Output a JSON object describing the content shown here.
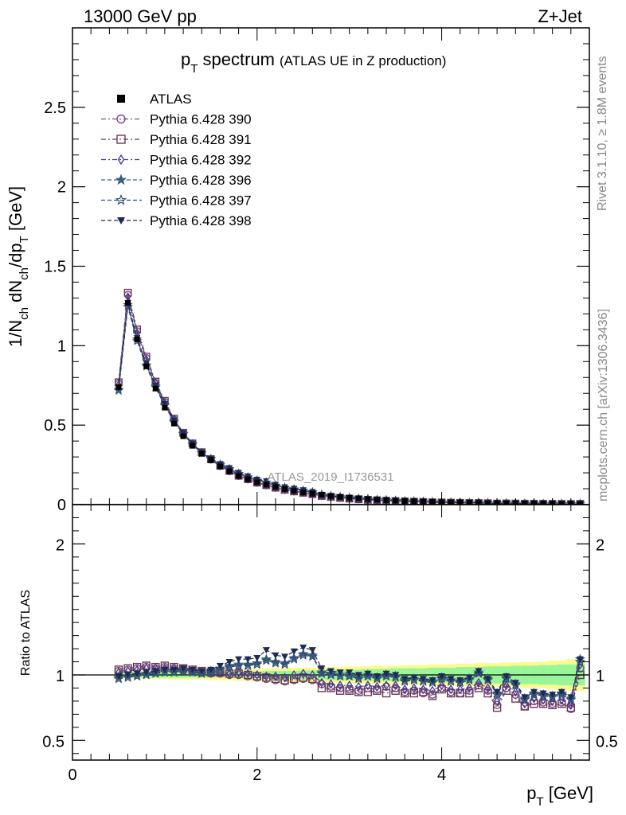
{
  "header": {
    "left_label": "13000 GeV pp",
    "right_label": "Z+Jet"
  },
  "side_labels": {
    "rivet": "Rivet 3.1.10, ≥ 1.8M events",
    "mcplots": "mcplots.cern.ch [arXiv:1306.3436]"
  },
  "colors": {
    "green_band": "#99f599",
    "yellow_band": "#fbfb8c",
    "data_marker": "#000000"
  },
  "chart_data": [
    {
      "type": "line",
      "title_main": "p",
      "title_sub": "T",
      "title_rest": " spectrum",
      "subtitle": "(ATLAS UE in Z production)",
      "ylabel_parts": [
        "1/N",
        "ch",
        " dN",
        "ch",
        "/dp",
        "T",
        " [GeV]"
      ],
      "watermark": "ATLAS_2019_I1736531",
      "ylim": [
        0,
        3.0
      ],
      "yticks": [
        "0",
        "0.5",
        "1",
        "1.5",
        "2",
        "2.5"
      ],
      "ytick_values": [
        0,
        0.5,
        1,
        1.5,
        2,
        2.5
      ],
      "x": [
        0.5,
        0.6,
        0.7,
        0.8,
        0.9,
        1.0,
        1.1,
        1.2,
        1.3,
        1.4,
        1.5,
        1.6,
        1.7,
        1.8,
        1.9,
        2.0,
        2.1,
        2.2,
        2.3,
        2.4,
        2.5,
        2.6,
        2.7,
        2.8,
        2.9,
        3.0,
        3.1,
        3.2,
        3.3,
        3.4,
        3.5,
        3.6,
        3.7,
        3.8,
        3.9,
        4.0,
        4.1,
        4.2,
        4.3,
        4.4,
        4.5,
        4.6,
        4.7,
        4.8,
        4.9,
        5.0,
        5.1,
        5.2,
        5.3,
        5.4,
        5.5
      ],
      "atlas_values": [
        0.74,
        1.27,
        1.04,
        0.87,
        0.73,
        0.61,
        0.51,
        0.43,
        0.37,
        0.32,
        0.28,
        0.24,
        0.21,
        0.18,
        0.16,
        0.14,
        0.125,
        0.11,
        0.097,
        0.086,
        0.076,
        0.068,
        0.061,
        0.054,
        0.048,
        0.043,
        0.039,
        0.035,
        0.031,
        0.028,
        0.025,
        0.023,
        0.021,
        0.019,
        0.017,
        0.015,
        0.014,
        0.013,
        0.012,
        0.011,
        0.01,
        0.009,
        0.0085,
        0.008,
        0.0075,
        0.007,
        0.0065,
        0.006,
        0.0055,
        0.005,
        0.0045
      ],
      "legend": [
        {
          "label": "ATLAS",
          "marker": "square-filled",
          "color": "#000000"
        },
        {
          "label": "Pythia 6.428 390",
          "marker": "circle-open",
          "color": "#7a4a8c"
        },
        {
          "label": "Pythia 6.428 391",
          "marker": "square-open",
          "color": "#6b3a55"
        },
        {
          "label": "Pythia 6.428 392",
          "marker": "diamond-open",
          "color": "#4a3a8c"
        },
        {
          "label": "Pythia 6.428 396",
          "marker": "star-filled",
          "color": "#3a6080"
        },
        {
          "label": "Pythia 6.428 397",
          "marker": "star-open",
          "color": "#2e4a70"
        },
        {
          "label": "Pythia 6.428 398",
          "marker": "triangle-down-filled",
          "color": "#1e2a55"
        }
      ]
    },
    {
      "type": "line",
      "ylabel": "Ratio to ATLAS",
      "xlabel_main": "p",
      "xlabel_sub": "T",
      "xlabel_rest": " [GeV]",
      "xlim": [
        0,
        5.6
      ],
      "xticks": [
        "0",
        "2",
        "4"
      ],
      "xtick_values": [
        0,
        2,
        4
      ],
      "ylim": [
        0.35,
        2.3
      ],
      "yticks": [
        "0.5",
        "1",
        "2"
      ],
      "ytick_values": [
        0.5,
        1,
        2
      ],
      "band_green_halfwidth": [
        0.02,
        0.02,
        0.02,
        0.02,
        0.02,
        0.02,
        0.02,
        0.02,
        0.02,
        0.02,
        0.02,
        0.02,
        0.02,
        0.025,
        0.025,
        0.025,
        0.03,
        0.03,
        0.03,
        0.03,
        0.035,
        0.035,
        0.035,
        0.04,
        0.04,
        0.04,
        0.04,
        0.045,
        0.045,
        0.045,
        0.05,
        0.05,
        0.05,
        0.05,
        0.055,
        0.055,
        0.055,
        0.06,
        0.06,
        0.06,
        0.065,
        0.065,
        0.065,
        0.07,
        0.07,
        0.07,
        0.075,
        0.075,
        0.08,
        0.08,
        0.08
      ],
      "band_yellow_halfwidth": [
        0.03,
        0.03,
        0.03,
        0.03,
        0.03,
        0.03,
        0.035,
        0.035,
        0.035,
        0.035,
        0.04,
        0.04,
        0.04,
        0.045,
        0.045,
        0.045,
        0.05,
        0.05,
        0.05,
        0.055,
        0.055,
        0.055,
        0.06,
        0.06,
        0.06,
        0.065,
        0.065,
        0.065,
        0.07,
        0.07,
        0.07,
        0.075,
        0.075,
        0.075,
        0.08,
        0.08,
        0.08,
        0.085,
        0.085,
        0.09,
        0.09,
        0.09,
        0.095,
        0.095,
        0.1,
        0.1,
        0.1,
        0.11,
        0.11,
        0.12,
        0.12
      ],
      "series": [
        {
          "name": "Pythia 6.428 390",
          "values": [
            1.03,
            1.04,
            1.05,
            1.06,
            1.05,
            1.06,
            1.05,
            1.04,
            1.03,
            1.02,
            1.01,
            1.01,
            1.0,
            1.0,
            0.99,
            0.98,
            0.97,
            0.96,
            0.95,
            0.96,
            0.97,
            0.96,
            0.93,
            0.91,
            0.9,
            0.89,
            0.88,
            0.9,
            0.89,
            0.91,
            0.9,
            0.87,
            0.88,
            0.86,
            0.85,
            0.9,
            0.87,
            0.86,
            0.88,
            0.92,
            0.88,
            0.77,
            0.9,
            0.85,
            0.76,
            0.8,
            0.79,
            0.78,
            0.79,
            0.74,
            1.05
          ]
        },
        {
          "name": "Pythia 6.428 391",
          "values": [
            1.04,
            1.05,
            1.06,
            1.07,
            1.06,
            1.07,
            1.06,
            1.05,
            1.04,
            1.03,
            1.02,
            1.02,
            1.01,
            1.01,
            1.0,
            0.99,
            0.98,
            0.97,
            0.96,
            0.97,
            0.98,
            0.97,
            0.9,
            0.9,
            0.88,
            0.88,
            0.87,
            0.87,
            0.88,
            0.86,
            0.88,
            0.86,
            0.86,
            0.87,
            0.84,
            0.89,
            0.86,
            0.86,
            0.86,
            0.9,
            0.86,
            0.75,
            0.88,
            0.82,
            0.76,
            0.78,
            0.78,
            0.77,
            0.78,
            0.75,
            1.0
          ]
        },
        {
          "name": "Pythia 6.428 392",
          "values": [
            1.02,
            1.03,
            1.04,
            1.05,
            1.05,
            1.05,
            1.05,
            1.04,
            1.03,
            1.02,
            1.02,
            1.02,
            1.01,
            1.02,
            1.01,
            1.0,
            0.99,
            0.99,
            0.98,
            1.0,
            1.01,
            1.0,
            0.94,
            0.93,
            0.92,
            0.92,
            0.91,
            0.92,
            0.91,
            0.92,
            0.92,
            0.89,
            0.9,
            0.89,
            0.88,
            0.92,
            0.89,
            0.89,
            0.9,
            0.94,
            0.9,
            0.8,
            0.92,
            0.87,
            0.78,
            0.82,
            0.81,
            0.8,
            0.81,
            0.77,
            1.08
          ]
        },
        {
          "name": "Pythia 6.428 396",
          "values": [
            0.98,
            0.99,
            1.0,
            1.01,
            1.02,
            1.03,
            1.03,
            1.04,
            1.03,
            1.02,
            1.03,
            1.05,
            1.07,
            1.08,
            1.08,
            1.09,
            1.12,
            1.1,
            1.09,
            1.13,
            1.16,
            1.15,
            1.02,
            1.01,
            1.0,
            1.0,
            0.98,
            1.0,
            0.98,
            1.0,
            0.99,
            0.96,
            0.97,
            0.96,
            0.95,
            0.98,
            0.96,
            0.95,
            0.97,
            1.02,
            0.97,
            0.86,
            0.98,
            0.93,
            0.82,
            0.86,
            0.85,
            0.84,
            0.86,
            0.82,
            1.12
          ]
        },
        {
          "name": "Pythia 6.428 397",
          "values": [
            0.97,
            0.98,
            0.99,
            1.0,
            1.01,
            1.02,
            1.02,
            1.03,
            1.02,
            1.01,
            1.02,
            1.04,
            1.06,
            1.07,
            1.07,
            1.08,
            1.11,
            1.09,
            1.08,
            1.12,
            1.15,
            1.14,
            1.01,
            1.0,
            0.99,
            0.99,
            0.97,
            0.99,
            0.97,
            0.99,
            0.98,
            0.95,
            0.96,
            0.95,
            0.94,
            0.97,
            0.95,
            0.94,
            0.96,
            1.01,
            0.96,
            0.85,
            0.97,
            0.92,
            0.81,
            0.85,
            0.84,
            0.83,
            0.85,
            0.81,
            1.1
          ]
        },
        {
          "name": "Pythia 6.428 398",
          "values": [
            0.99,
            1.0,
            1.01,
            1.02,
            1.03,
            1.04,
            1.04,
            1.05,
            1.04,
            1.03,
            1.04,
            1.07,
            1.1,
            1.12,
            1.12,
            1.13,
            1.19,
            1.15,
            1.14,
            1.18,
            1.21,
            1.19,
            1.05,
            1.03,
            1.02,
            1.02,
            1.0,
            1.01,
            0.99,
            1.01,
            1.0,
            0.97,
            0.98,
            0.97,
            0.96,
            0.99,
            0.97,
            0.96,
            0.98,
            1.03,
            0.97,
            0.87,
            0.99,
            0.94,
            0.83,
            0.87,
            0.86,
            0.85,
            0.87,
            0.83,
            1.12
          ]
        }
      ]
    }
  ]
}
